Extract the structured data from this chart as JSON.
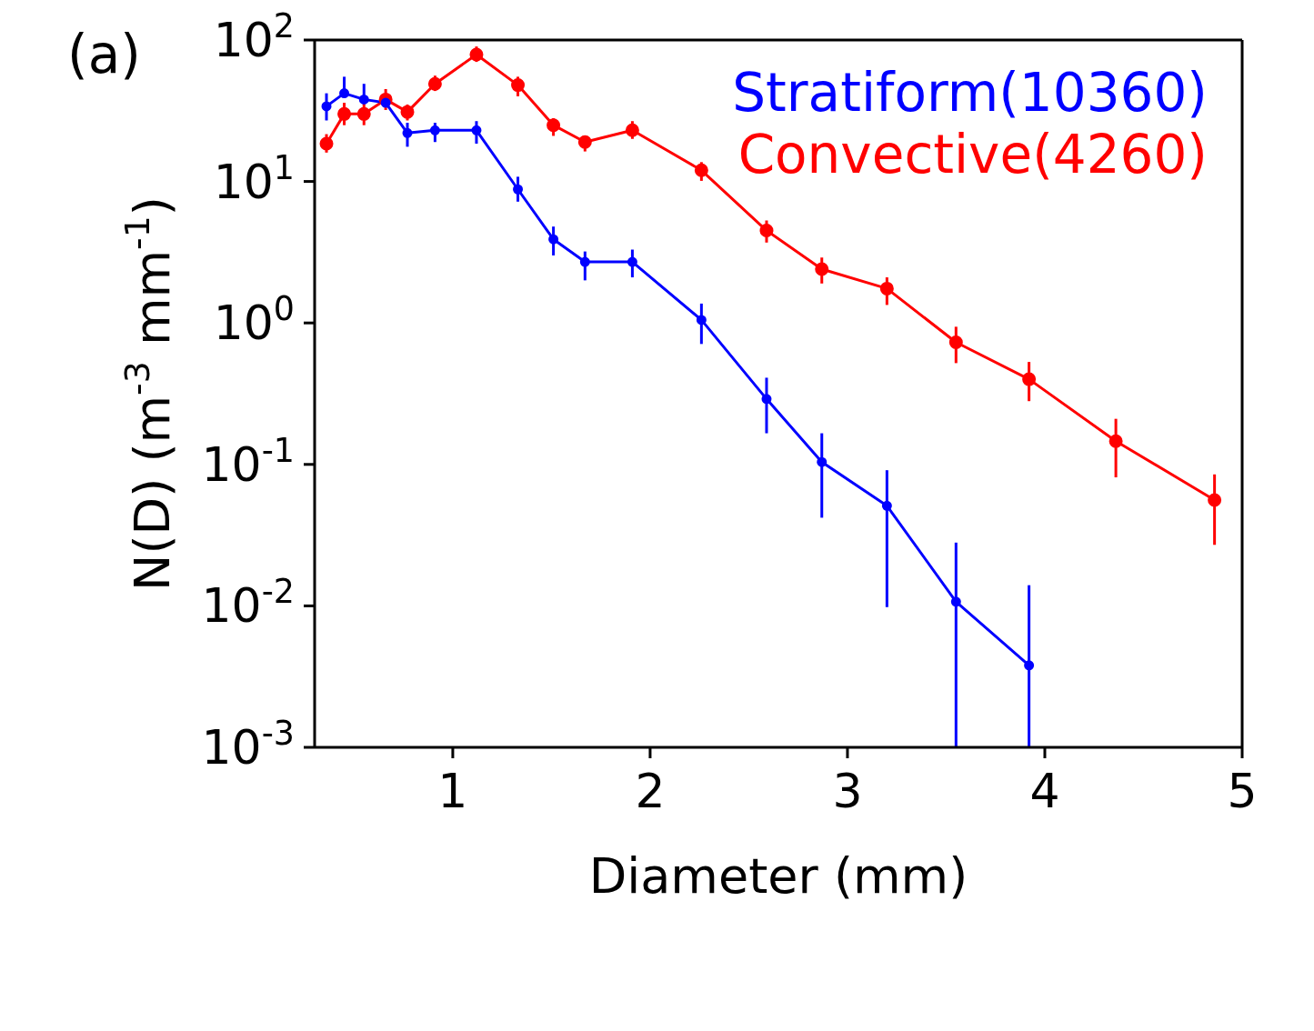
{
  "chart_data": {
    "type": "line",
    "xlabel": "Diameter (mm)",
    "ylabel": "N(D) (m$^{-3}$ mm$^{-1}$)",
    "annotations": [
      "(a)"
    ],
    "xlim": [
      0.3,
      5
    ],
    "xticks": [
      1,
      2,
      3,
      4,
      5
    ],
    "ylim": [
      0.001,
      100
    ],
    "yticks": [
      {
        "value": 0.001,
        "label": "10$^{-3}$"
      },
      {
        "value": 0.01,
        "label": "10$^{-2}$"
      },
      {
        "value": 0.1,
        "label": "10$^{-1}$"
      },
      {
        "value": 1,
        "label": "10$^{0}$"
      },
      {
        "value": 10,
        "label": "10$^{1}$"
      },
      {
        "value": 100,
        "label": "10$^{2}$"
      }
    ],
    "log": "y",
    "grid": false,
    "legend": "top right",
    "marker": "circle",
    "line_style": "solid",
    "series": [
      {
        "name": "Stratiform(10360)",
        "color": "#0000ff",
        "x": [
          0.36,
          0.45,
          0.55,
          0.66,
          0.77,
          0.91,
          1.12,
          1.33,
          1.51,
          1.67,
          1.91,
          2.26,
          2.59,
          2.87,
          3.2,
          3.55,
          3.92
        ],
        "values": [
          34,
          42,
          38,
          36,
          22,
          23,
          23,
          8.8,
          3.9,
          2.7,
          2.7,
          1.05,
          0.29,
          0.104,
          0.051,
          0.0107,
          0.0038
        ],
        "errors": [
          [
            27,
            42
          ],
          [
            42,
            55
          ],
          [
            38,
            49
          ],
          null,
          [
            17.6,
            26
          ],
          [
            19,
            26
          ],
          [
            18.5,
            26.7
          ],
          [
            7.2,
            10.8
          ],
          [
            3.0,
            4.8
          ],
          [
            2.0,
            3.2
          ],
          [
            2.1,
            3.3
          ],
          [
            0.71,
            1.37
          ],
          [
            0.166,
            0.41
          ],
          [
            0.042,
            0.166
          ],
          [
            0.0098,
            0.091
          ],
          [
            0.001,
            0.028
          ],
          [
            0.001,
            0.014
          ]
        ]
      },
      {
        "name": "Convective(4260)",
        "color": "#ff0000",
        "x": [
          0.36,
          0.45,
          0.55,
          0.66,
          0.77,
          0.91,
          1.12,
          1.33,
          1.51,
          1.67,
          1.91,
          2.26,
          2.59,
          2.87,
          3.2,
          3.55,
          3.92,
          4.36,
          4.86
        ],
        "values": [
          18.5,
          30,
          30,
          38,
          31,
          49,
          79,
          48,
          25,
          19,
          23,
          12,
          4.5,
          2.4,
          1.75,
          0.73,
          0.4,
          0.146,
          0.056
        ],
        "errors": [
          [
            16,
            21.6
          ],
          [
            25,
            36
          ],
          [
            25,
            36
          ],
          [
            32,
            45
          ],
          [
            27,
            35
          ],
          [
            43.6,
            56
          ],
          [
            70,
            90
          ],
          [
            40,
            55
          ],
          [
            21,
            28
          ],
          [
            16.3,
            21
          ],
          [
            20,
            26.7
          ],
          [
            10.1,
            13.7
          ],
          [
            3.7,
            5.3
          ],
          [
            1.9,
            2.9
          ],
          [
            1.34,
            2.1
          ],
          [
            0.52,
            0.94
          ],
          [
            0.28,
            0.53
          ],
          [
            0.081,
            0.21
          ],
          [
            0.027,
            0.085
          ]
        ]
      }
    ]
  }
}
